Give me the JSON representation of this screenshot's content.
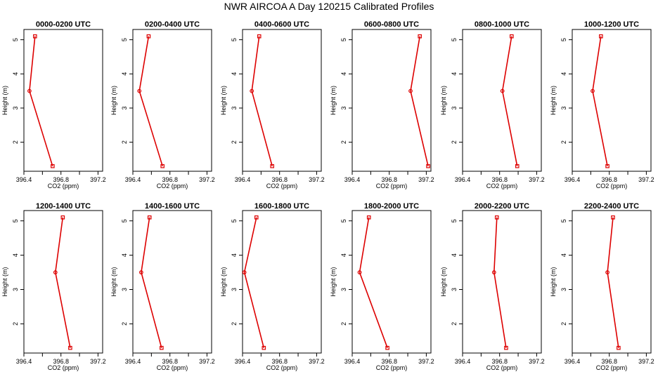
{
  "chart_data": {
    "type": "line",
    "title": "NWR AIRCOA A  Day 120215  Calibrated Profiles",
    "xlabel": "CO2 (ppm)",
    "ylabel": "Height (m)",
    "xlim": [
      396.4,
      397.25
    ],
    "ylim": [
      1.15,
      5.3
    ],
    "x_ticks": [
      396.4,
      396.8,
      397.2
    ],
    "x_tick_labels": [
      "396.4",
      "396.8",
      "397.2"
    ],
    "x_minor_ticks": [
      396.6,
      397.0
    ],
    "y_ticks": [
      2,
      3,
      4,
      5
    ],
    "y_tick_labels": [
      "2",
      "3",
      "4",
      "5"
    ],
    "heights": [
      5.1,
      3.5,
      1.3
    ],
    "line_color": "#dd0000",
    "panels": [
      {
        "name": "0000-0200 UTC",
        "values": [
          396.52,
          396.46,
          396.71
        ]
      },
      {
        "name": "0200-0400 UTC",
        "values": [
          396.57,
          396.47,
          396.72
        ]
      },
      {
        "name": "0400-0600 UTC",
        "values": [
          396.58,
          396.5,
          396.72
        ]
      },
      {
        "name": "0600-0800 UTC",
        "values": [
          397.13,
          397.03,
          397.22
        ]
      },
      {
        "name": "0800-1000 UTC",
        "values": [
          396.93,
          396.83,
          396.99
        ]
      },
      {
        "name": "1000-1200 UTC",
        "values": [
          396.71,
          396.62,
          396.78
        ]
      },
      {
        "name": "1200-1400 UTC",
        "values": [
          396.82,
          396.74,
          396.9
        ]
      },
      {
        "name": "1400-1600 UTC",
        "values": [
          396.58,
          396.49,
          396.71
        ]
      },
      {
        "name": "1600-1800 UTC",
        "values": [
          396.55,
          396.42,
          396.63
        ]
      },
      {
        "name": "1800-2000 UTC",
        "values": [
          396.58,
          396.48,
          396.78
        ]
      },
      {
        "name": "2000-2200 UTC",
        "values": [
          396.77,
          396.74,
          396.87
        ]
      },
      {
        "name": "2200-2400 UTC",
        "values": [
          396.84,
          396.78,
          396.9
        ]
      }
    ]
  }
}
